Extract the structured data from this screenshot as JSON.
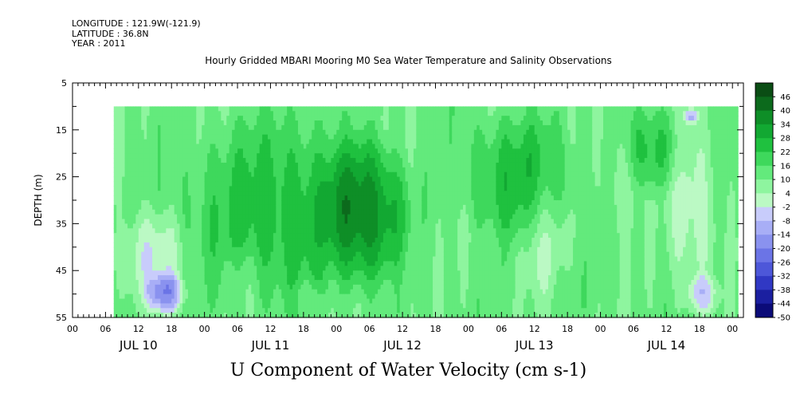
{
  "header": {
    "longitude": "LONGITUDE : 121.9W(-121.9)",
    "latitude": "LATITUDE : 36.8N",
    "year": "YEAR : 2011",
    "title": "Hourly Gridded MBARI Mooring M0 Sea Water Temperature and Salinity Observations"
  },
  "chart_data": {
    "type": "heatmap",
    "title": "Hourly Gridded MBARI Mooring M0 Sea Water Temperature and Salinity Observations",
    "xlabel": "U Component of Water Velocity (cm s-1)",
    "ylabel": "DEPTH (m)",
    "y_range": [
      5,
      55
    ],
    "y_inverted": true,
    "y_ticks": [
      "5",
      "15",
      "25",
      "35",
      "45",
      "55"
    ],
    "x_range_hours": [
      0,
      122
    ],
    "x_hour_tick_labels": [
      "00",
      "06",
      "12",
      "18",
      "00",
      "06",
      "12",
      "18",
      "00",
      "06",
      "12",
      "18",
      "00",
      "06",
      "12",
      "18",
      "00",
      "06",
      "12",
      "18",
      "00"
    ],
    "x_day_labels": [
      "JUL 10",
      "JUL 11",
      "JUL 12",
      "JUL 13",
      "JUL 14"
    ],
    "data_coverage": {
      "start_hour": 7.5,
      "end_hour": 121,
      "min_depth": 10,
      "max_depth": 55
    },
    "colorbar": {
      "levels": [
        "46",
        "40",
        "34",
        "28",
        "22",
        "16",
        "10",
        "4",
        "-2",
        "-8",
        "-14",
        "-20",
        "-26",
        "-32",
        "-38",
        "-44",
        "-50"
      ],
      "colors": [
        "#0a4d14",
        "#0c6a1c",
        "#0e8e27",
        "#12a832",
        "#1fc13f",
        "#3ed85c",
        "#63ea7c",
        "#8ef59f",
        "#bbf9c4",
        "#c8ccfb",
        "#a8aef6",
        "#8a92ef",
        "#6b74e6",
        "#4d57d9",
        "#3038c4",
        "#1b1fa0",
        "#0b0b78"
      ]
    },
    "fields": {
      "positive_regions": [
        {
          "h0": 18,
          "h1": 60,
          "d0": 10,
          "d1": 55,
          "v": 14
        },
        {
          "h0": 45,
          "h1": 62,
          "d0": 15,
          "d1": 50,
          "v": 20
        },
        {
          "h0": 70,
          "h1": 92,
          "d0": 10,
          "d1": 40,
          "v": 14
        },
        {
          "h0": 100,
          "h1": 112,
          "d0": 10,
          "d1": 30,
          "v": 12
        }
      ],
      "negative_regions": [
        {
          "h0": 7.5,
          "h1": 21,
          "d0": 30,
          "d1": 55,
          "v": -14
        },
        {
          "h0": 13,
          "h1": 21,
          "d0": 45,
          "d1": 55,
          "v": -24
        },
        {
          "h0": 27,
          "h1": 34,
          "d0": 38,
          "d1": 55,
          "v": -6
        },
        {
          "h0": 40,
          "h1": 46,
          "d0": 46,
          "d1": 55,
          "v": -6
        },
        {
          "h0": 81,
          "h1": 90,
          "d0": 22,
          "d1": 55,
          "v": -8
        },
        {
          "h0": 96,
          "h1": 104,
          "d0": 15,
          "d1": 40,
          "v": -6
        },
        {
          "h0": 107,
          "h1": 118,
          "d0": 10,
          "d1": 55,
          "v": -12
        },
        {
          "h0": 111,
          "h1": 114,
          "d0": 10,
          "d1": 14,
          "v": -20
        },
        {
          "h0": 111,
          "h1": 118,
          "d0": 45,
          "d1": 55,
          "v": -14
        }
      ]
    }
  }
}
